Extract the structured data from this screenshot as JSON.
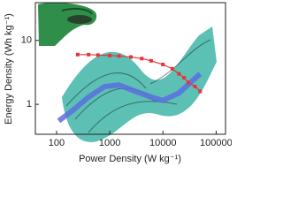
{
  "chart_data": {
    "type": "line",
    "x_label": "Power Density (W kg⁻¹)",
    "y_label": "Energy Density (Wh kg⁻¹)",
    "xscale": "log",
    "yscale": "log",
    "xlim": [
      40,
      150000
    ],
    "ylim": [
      0.34,
      39
    ],
    "xticks": [
      100,
      1000,
      10000,
      100000
    ],
    "yticks": [
      1,
      10
    ],
    "series": [
      {
        "color": "#5a6fe0",
        "marker": "none",
        "x": [
          110,
          200,
          400,
          800,
          1500,
          3000,
          6000,
          10000,
          20000,
          35000,
          50000
        ],
        "values": [
          0.55,
          0.8,
          1.3,
          1.9,
          2.0,
          1.6,
          1.3,
          1.15,
          1.5,
          2.3,
          3.0
        ]
      },
      {
        "color": "#e8333a",
        "marker": "square",
        "x": [
          250,
          400,
          600,
          1000,
          1500,
          2500,
          4000,
          6000,
          10000,
          15000,
          20000,
          25000,
          30000,
          40000,
          50000
        ],
        "values": [
          6.0,
          6.0,
          5.9,
          5.8,
          5.7,
          5.5,
          5.2,
          4.8,
          4.2,
          3.6,
          3.0,
          2.6,
          2.2,
          1.9,
          1.6
        ]
      }
    ]
  }
}
